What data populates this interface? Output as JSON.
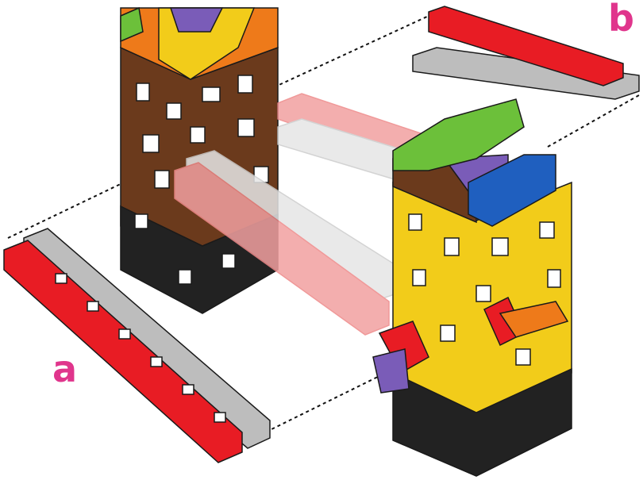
{
  "labels": {
    "a": "a",
    "b": "b"
  },
  "colors": {
    "label": "#e0358c",
    "red": "#e81c24",
    "gray": "#bdbdbd",
    "pink": "#f2a0a0",
    "ghost_gray": "#e6e6e6",
    "brown": "#6b3a1c",
    "black": "#222222",
    "white": "#ffffff",
    "yellow": "#f2cc1a",
    "orange": "#ee7a1a",
    "purple": "#7a5cb8",
    "blue": "#1f5fbf",
    "green": "#6cc03a",
    "outline": "#1a1a1a"
  }
}
